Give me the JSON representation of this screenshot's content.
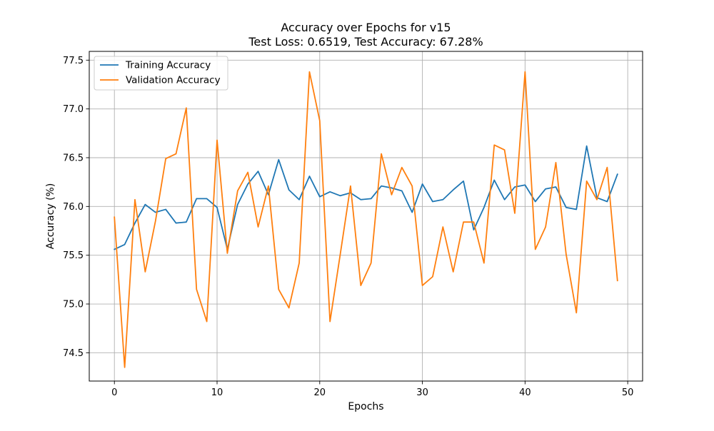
{
  "chart_data": {
    "type": "line",
    "title": "Accuracy over Epochs for v15",
    "subtitle": "Test Loss: 0.6519, Test Accuracy: 67.28%",
    "xlabel": "Epochs",
    "ylabel": "Accuracy (%)",
    "xlim": [
      -2.45,
      51.45
    ],
    "ylim": [
      74.21,
      77.59
    ],
    "xticks": [
      0,
      10,
      20,
      30,
      40,
      50
    ],
    "yticks": [
      74.5,
      75.0,
      75.5,
      76.0,
      76.5,
      77.0,
      77.5
    ],
    "xtick_labels": [
      "0",
      "10",
      "20",
      "30",
      "40",
      "50"
    ],
    "ytick_labels": [
      "74.5",
      "75.0",
      "75.5",
      "76.0",
      "76.5",
      "77.0",
      "77.5"
    ],
    "grid": true,
    "legend_position": "upper-left",
    "x": [
      0,
      1,
      2,
      3,
      4,
      5,
      6,
      7,
      8,
      9,
      10,
      11,
      12,
      13,
      14,
      15,
      16,
      17,
      18,
      19,
      20,
      21,
      22,
      23,
      24,
      25,
      26,
      27,
      28,
      29,
      30,
      31,
      32,
      33,
      34,
      35,
      36,
      37,
      38,
      39,
      40,
      41,
      42,
      43,
      44,
      45,
      46,
      47,
      48,
      49
    ],
    "series": [
      {
        "name": "Training Accuracy",
        "color": "#1f77b4",
        "values": [
          75.56,
          75.61,
          75.83,
          76.02,
          75.94,
          75.97,
          75.83,
          75.84,
          76.08,
          76.08,
          75.99,
          75.56,
          76.02,
          76.23,
          76.36,
          76.12,
          76.48,
          76.17,
          76.07,
          76.31,
          76.1,
          76.15,
          76.11,
          76.14,
          76.07,
          76.08,
          76.21,
          76.19,
          76.16,
          75.94,
          76.23,
          76.05,
          76.07,
          76.17,
          76.26,
          75.76,
          75.99,
          76.27,
          76.07,
          76.2,
          76.22,
          76.05,
          76.18,
          76.2,
          75.99,
          75.97,
          76.62,
          76.09,
          76.05,
          76.33
        ]
      },
      {
        "name": "Validation Accuracy",
        "color": "#ff7f0e",
        "values": [
          75.89,
          74.35,
          76.07,
          75.33,
          75.85,
          76.49,
          76.54,
          77.01,
          75.15,
          74.82,
          76.68,
          75.52,
          76.16,
          76.35,
          75.79,
          76.21,
          75.15,
          74.96,
          75.42,
          77.38,
          76.88,
          74.82,
          75.51,
          76.21,
          75.19,
          75.42,
          76.54,
          76.12,
          76.4,
          76.21,
          75.19,
          75.28,
          75.79,
          75.33,
          75.84,
          75.84,
          75.42,
          76.63,
          76.58,
          75.93,
          77.38,
          75.56,
          75.79,
          76.45,
          75.51,
          74.91,
          76.26,
          76.07,
          76.4,
          75.24
        ]
      }
    ]
  }
}
